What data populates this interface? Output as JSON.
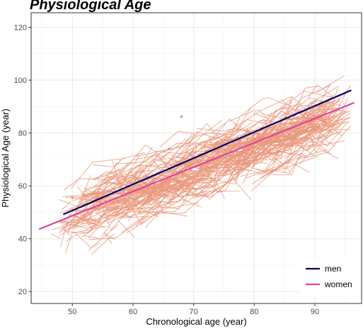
{
  "chart_data": {
    "type": "line",
    "title": "Physiological Age",
    "xlabel": "Chronological age (year)",
    "ylabel": "Physiological Age (year)",
    "xlim": [
      43.2,
      97.7
    ],
    "ylim": [
      15.5,
      125.5
    ],
    "x_ticks": [
      50,
      60,
      70,
      80,
      90
    ],
    "y_ticks": [
      20,
      40,
      60,
      80,
      100,
      120
    ],
    "grid": true,
    "legend_position": "bottom-right",
    "series": [
      {
        "name": "men",
        "color": "#000066",
        "x": [
          48.5,
          96
        ],
        "y": [
          49.2,
          96.2
        ]
      },
      {
        "name": "women",
        "color": "#e0449a",
        "x": [
          44.5,
          96.5
        ],
        "y": [
          43.6,
          91.5
        ]
      }
    ],
    "individual_trajectories": {
      "color": "#e9967a",
      "count": 650,
      "x_range": [
        44.5,
        96
      ],
      "note_y_range": [
        38,
        106
      ]
    },
    "outlier_points": [
      {
        "x": 50,
        "y": 55.5
      },
      {
        "x": 52,
        "y": 56.5
      },
      {
        "x": 68,
        "y": 86.2
      },
      {
        "x": 66,
        "y": 74
      }
    ]
  }
}
